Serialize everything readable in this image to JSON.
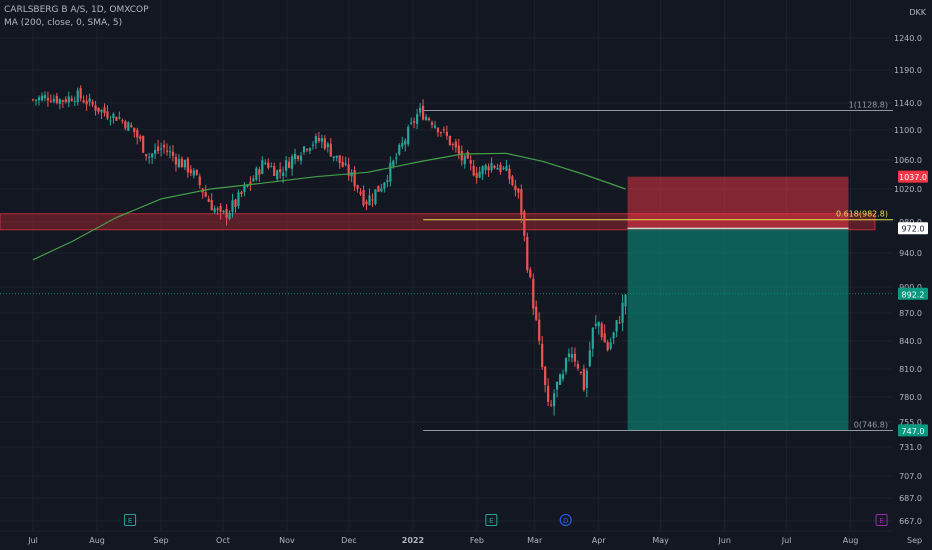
{
  "header": {
    "symbol_line": "CARLSBERG B A/S, 1D, OMXCOP",
    "indicator_line": "MA (200, close, 0, SMA, 5)"
  },
  "colors": {
    "background": "#131722",
    "grid": "#1e222d",
    "text": "#b2b5be",
    "up_candle": "#26a69a",
    "down_candle": "#ef5350",
    "ma_line": "#43a047",
    "stop_zone": "#f23645",
    "target_zone": "#089981",
    "fib_618": "#e6e04a",
    "fib_line": "#9598a1",
    "resistance_band": "#b22833"
  },
  "chart_data": {
    "type": "candlestick",
    "currency": "DKK",
    "y_ticks": [
      1240.0,
      1190.0,
      1140.0,
      1100.0,
      1060.0,
      1020.0,
      980.0,
      940.0,
      900.0,
      870.0,
      840.0,
      810.0,
      780.0,
      755.0,
      731.0,
      707.0,
      687.0,
      667.0
    ],
    "x_ticks": [
      "Jul",
      "Aug",
      "Sep",
      "Oct",
      "Nov",
      "Dec",
      "2022",
      "Feb",
      "Mar",
      "Apr",
      "May",
      "Jun",
      "Jul",
      "Aug",
      "Sep"
    ],
    "date_range": [
      "2021-07-01",
      "2022-04-14"
    ],
    "ylim": [
      660,
      1270
    ],
    "price_labels": {
      "stop": "1037.0",
      "entry": "972.0",
      "last": "892.2",
      "target": "747.0"
    },
    "fib_labels": {
      "top": "1(1128.8)",
      "mid": "0.618(982.8)",
      "bottom": "0(746.8)"
    },
    "fib_levels": {
      "top": 1128.8,
      "mid": 982.8,
      "bottom": 746.8
    },
    "position": {
      "stop": 1037.0,
      "entry": 972.0,
      "target": 747.0,
      "start": "2022-04-15",
      "end": "2022-07-31"
    },
    "resistance_zone": [
      970,
      990
    ],
    "current_price": 892.2,
    "event_markers": [
      {
        "label": "E",
        "date": "2021-08-17",
        "color": "#26a69a"
      },
      {
        "label": "E",
        "date": "2022-02-08",
        "color": "#26a69a"
      },
      {
        "label": "D",
        "date": "2022-03-16",
        "color": "#2962ff"
      },
      {
        "label": "E",
        "date": "2022-08-16",
        "color": "#9c27b0"
      }
    ],
    "ma_series": {
      "name": "MA (200, close, 0, SMA, 5)",
      "points": [
        [
          "2021-07-01",
          932
        ],
        [
          "2021-07-20",
          955
        ],
        [
          "2021-08-10",
          985
        ],
        [
          "2021-09-01",
          1008
        ],
        [
          "2021-09-25",
          1020
        ],
        [
          "2021-10-20",
          1028
        ],
        [
          "2021-11-15",
          1037
        ],
        [
          "2021-12-10",
          1043
        ],
        [
          "2022-01-05",
          1058
        ],
        [
          "2022-01-25",
          1068
        ],
        [
          "2022-02-15",
          1069
        ],
        [
          "2022-03-05",
          1058
        ],
        [
          "2022-03-25",
          1040
        ],
        [
          "2022-04-14",
          1020
        ]
      ]
    },
    "close_series": [
      [
        "2021-07-01",
        1145
      ],
      [
        "2021-07-08",
        1150
      ],
      [
        "2021-07-15",
        1144
      ],
      [
        "2021-07-22",
        1152
      ],
      [
        "2021-07-29",
        1138
      ],
      [
        "2021-08-05",
        1125
      ],
      [
        "2021-08-12",
        1118
      ],
      [
        "2021-08-19",
        1098
      ],
      [
        "2021-08-26",
        1065
      ],
      [
        "2021-09-02",
        1077
      ],
      [
        "2021-09-09",
        1060
      ],
      [
        "2021-09-16",
        1044
      ],
      [
        "2021-09-23",
        1010
      ],
      [
        "2021-09-30",
        985
      ],
      [
        "2021-10-07",
        1002
      ],
      [
        "2021-10-14",
        1028
      ],
      [
        "2021-10-21",
        1058
      ],
      [
        "2021-10-28",
        1042
      ],
      [
        "2021-11-04",
        1064
      ],
      [
        "2021-11-11",
        1082
      ],
      [
        "2021-11-18",
        1087
      ],
      [
        "2021-11-25",
        1062
      ],
      [
        "2021-12-02",
        1038
      ],
      [
        "2021-12-09",
        1005
      ],
      [
        "2021-12-16",
        1022
      ],
      [
        "2021-12-23",
        1058
      ],
      [
        "2021-12-30",
        1098
      ],
      [
        "2022-01-04",
        1128
      ],
      [
        "2022-01-11",
        1112
      ],
      [
        "2022-01-18",
        1088
      ],
      [
        "2022-01-25",
        1060
      ],
      [
        "2022-02-01",
        1042
      ],
      [
        "2022-02-08",
        1055
      ],
      [
        "2022-02-15",
        1045
      ],
      [
        "2022-02-22",
        1005
      ],
      [
        "2022-02-25",
        935
      ],
      [
        "2022-03-01",
        870
      ],
      [
        "2022-03-04",
        820
      ],
      [
        "2022-03-08",
        760
      ],
      [
        "2022-03-11",
        790
      ],
      [
        "2022-03-15",
        800
      ],
      [
        "2022-03-18",
        835
      ],
      [
        "2022-03-22",
        815
      ],
      [
        "2022-03-25",
        790
      ],
      [
        "2022-03-29",
        850
      ],
      [
        "2022-04-01",
        860
      ],
      [
        "2022-04-05",
        830
      ],
      [
        "2022-04-08",
        845
      ],
      [
        "2022-04-12",
        872
      ],
      [
        "2022-04-14",
        892.2
      ]
    ]
  }
}
